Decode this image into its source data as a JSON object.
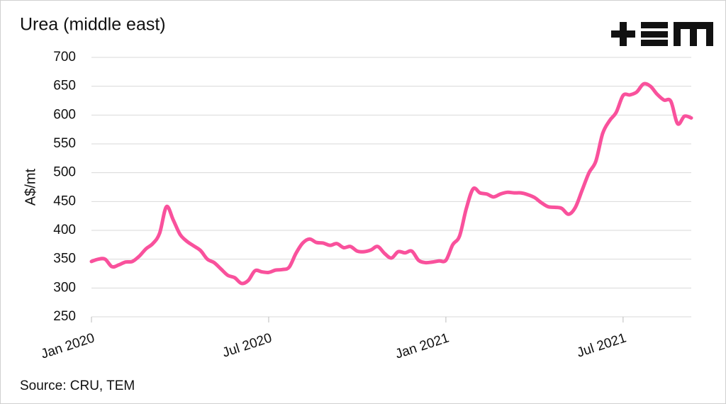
{
  "chart_data": {
    "type": "line",
    "title": "Urea (middle east)",
    "ylabel": "A$/mt",
    "source": "Source: CRU, TEM",
    "categories": [
      "Jan 2020",
      null,
      null,
      null,
      null,
      null,
      null,
      null,
      null,
      null,
      null,
      null,
      null,
      null,
      null,
      null,
      null,
      null,
      null,
      null,
      null,
      null,
      null,
      null,
      null,
      null,
      "Jul 2020",
      null,
      null,
      null,
      null,
      null,
      null,
      null,
      null,
      null,
      null,
      null,
      null,
      null,
      null,
      null,
      null,
      null,
      null,
      null,
      null,
      null,
      null,
      null,
      null,
      null,
      "Jan 2021",
      null,
      null,
      null,
      null,
      null,
      null,
      null,
      null,
      null,
      null,
      null,
      null,
      null,
      null,
      null,
      null,
      null,
      null,
      null,
      null,
      null,
      null,
      null,
      null,
      null,
      "Jul 2021",
      null,
      null,
      null,
      null,
      null,
      null,
      null,
      null,
      null,
      null
    ],
    "series": [
      {
        "name": "Urea (middle east)",
        "color": "#f9519c",
        "values": [
          346,
          350,
          350,
          337,
          340,
          345,
          346,
          355,
          368,
          377,
          395,
          441,
          418,
          393,
          381,
          373,
          365,
          350,
          344,
          333,
          322,
          318,
          308,
          313,
          330,
          328,
          327,
          331,
          332,
          336,
          360,
          378,
          385,
          379,
          378,
          374,
          377,
          370,
          372,
          364,
          363,
          366,
          372,
          360,
          352,
          363,
          361,
          364,
          348,
          344,
          345,
          347,
          348,
          375,
          390,
          438,
          472,
          465,
          463,
          458,
          463,
          466,
          465,
          465,
          462,
          457,
          448,
          441,
          440,
          438,
          428,
          440,
          470,
          500,
          520,
          568,
          590,
          605,
          634,
          635,
          640,
          654,
          650,
          636,
          626,
          624,
          585,
          598,
          595
        ]
      }
    ],
    "ylim": [
      250,
      700
    ],
    "yticks": [
      250,
      300,
      350,
      400,
      450,
      500,
      550,
      600,
      650,
      700
    ],
    "grid": true
  }
}
